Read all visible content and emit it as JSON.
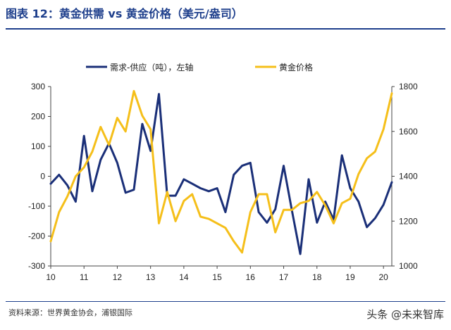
{
  "title": "图表  12：黄金供需  vs  黄金价格（美元/盎司）",
  "source": "资料来源：世界黄金协会，浦银国际",
  "watermark": "头条 @未来智库",
  "colors": {
    "navy": "#1a2f78",
    "gold": "#f5bf1a",
    "accent": "#1e3f8c"
  },
  "chart_data": {
    "type": "line",
    "x_ticks": [
      "10",
      "11",
      "12",
      "13",
      "14",
      "15",
      "16",
      "17",
      "18",
      "19",
      "20"
    ],
    "x_range": [
      10,
      20.25
    ],
    "y_left_ticks": [
      "300",
      "200",
      "100",
      "0",
      "-100",
      "-200",
      "-300"
    ],
    "y_left_range": [
      -300,
      300
    ],
    "y_right_ticks": [
      "1800",
      "1600",
      "1400",
      "1200",
      "1000"
    ],
    "y_right_range": [
      1000,
      1800
    ],
    "legend_position": "top",
    "series": [
      {
        "name": "需求-供应（吨），左轴",
        "axis": "left",
        "color": "#1a2f78",
        "x": [
          10.0,
          10.25,
          10.5,
          10.75,
          11.0,
          11.25,
          11.5,
          11.75,
          12.0,
          12.25,
          12.5,
          12.75,
          13.0,
          13.25,
          13.5,
          13.75,
          14.0,
          14.25,
          14.5,
          14.75,
          15.0,
          15.25,
          15.5,
          15.75,
          16.0,
          16.25,
          16.5,
          16.75,
          17.0,
          17.25,
          17.5,
          17.75,
          18.0,
          18.25,
          18.5,
          18.75,
          19.0,
          19.25,
          19.5,
          19.75,
          20.0,
          20.25
        ],
        "y": [
          -25,
          5,
          -30,
          -85,
          135,
          -50,
          55,
          110,
          45,
          -55,
          -45,
          175,
          85,
          275,
          -65,
          -65,
          -10,
          -25,
          -40,
          -50,
          -40,
          -120,
          5,
          35,
          45,
          -120,
          -155,
          -110,
          35,
          -115,
          -260,
          -10,
          -155,
          -85,
          -145,
          70,
          -40,
          -85,
          -170,
          -140,
          -95,
          -20
        ]
      },
      {
        "name": "黄金价格",
        "axis": "right",
        "color": "#f5bf1a",
        "x": [
          10.0,
          10.25,
          10.5,
          10.75,
          11.0,
          11.25,
          11.5,
          11.75,
          12.0,
          12.25,
          12.5,
          12.75,
          13.0,
          13.25,
          13.5,
          13.75,
          14.0,
          14.25,
          14.5,
          14.75,
          15.0,
          15.25,
          15.5,
          15.75,
          16.0,
          16.25,
          16.5,
          16.75,
          17.0,
          17.25,
          17.5,
          17.75,
          18.0,
          18.25,
          18.5,
          18.75,
          19.0,
          19.25,
          19.5,
          19.75,
          20.0,
          20.25
        ],
        "y": [
          1110,
          1240,
          1310,
          1400,
          1440,
          1510,
          1620,
          1540,
          1660,
          1600,
          1780,
          1670,
          1610,
          1190,
          1330,
          1200,
          1290,
          1320,
          1220,
          1210,
          1190,
          1170,
          1110,
          1060,
          1240,
          1320,
          1320,
          1150,
          1250,
          1250,
          1280,
          1290,
          1330,
          1270,
          1190,
          1280,
          1300,
          1410,
          1480,
          1510,
          1610,
          1770
        ]
      }
    ]
  }
}
